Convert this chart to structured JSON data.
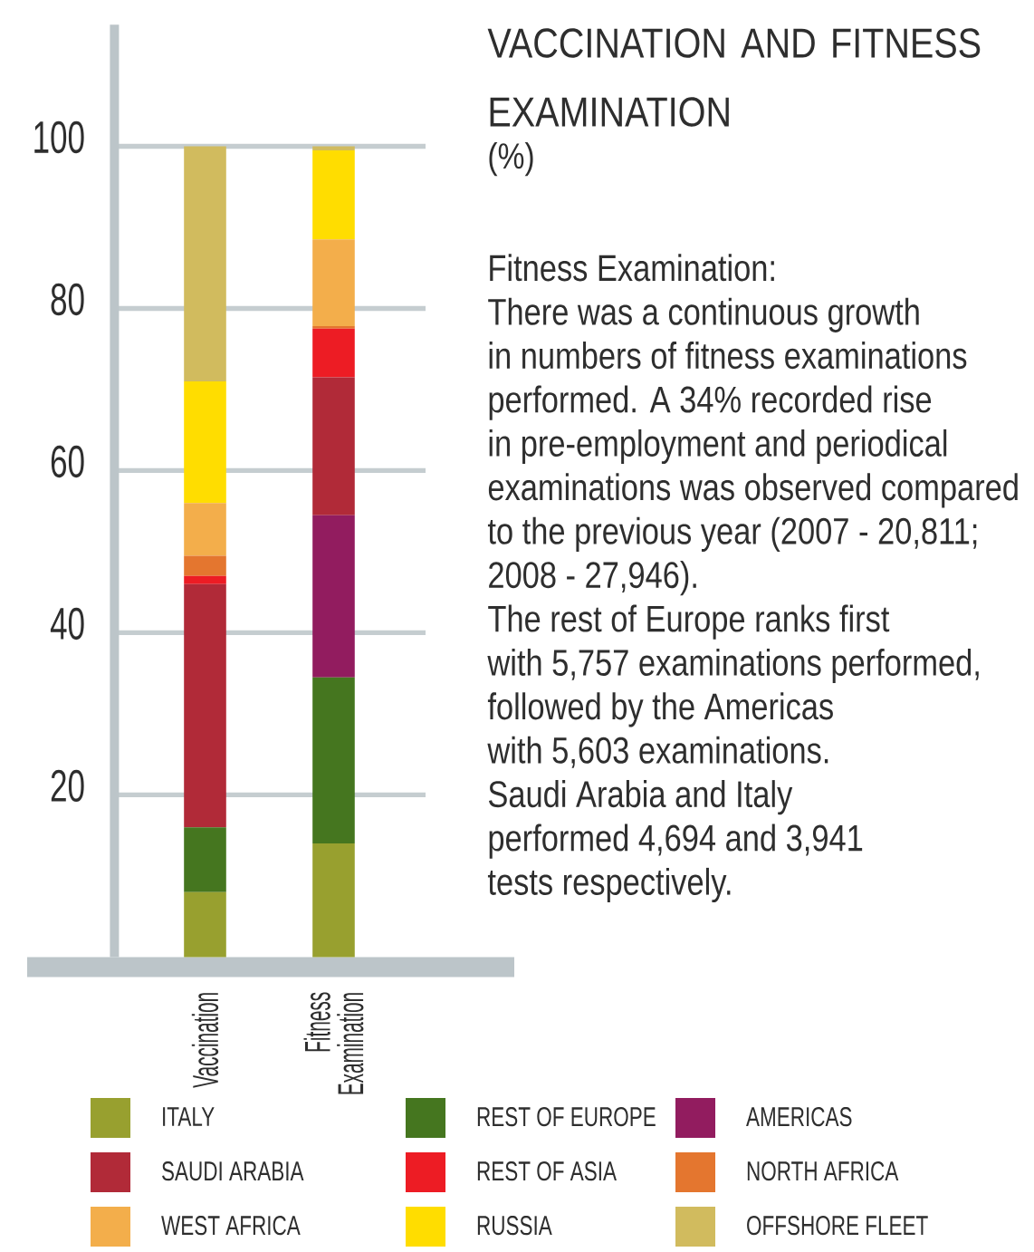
{
  "chart_data": {
    "type": "bar",
    "stacked": true,
    "title": "VACCINATION AND FITNESS EXAMINATION",
    "subtitle": "(%)",
    "categories": [
      "Vaccination",
      "Fitness Examination"
    ],
    "series": [
      {
        "name": "ITALY",
        "color": "#98a02f",
        "values": [
          8,
          14
        ]
      },
      {
        "name": "REST OF EUROPE",
        "color": "#45761f",
        "values": [
          8,
          20.5
        ]
      },
      {
        "name": "AMERICAS",
        "color": "#921c5f",
        "values": [
          0,
          20
        ]
      },
      {
        "name": "SAUDI ARABIA",
        "color": "#b12a38",
        "values": [
          30,
          17
        ]
      },
      {
        "name": "REST OF ASIA",
        "color": "#ed1c24",
        "values": [
          1,
          6
        ]
      },
      {
        "name": "NORTH AFRICA",
        "color": "#e4762f",
        "values": [
          2.5,
          0.3
        ]
      },
      {
        "name": "WEST AFRICA",
        "color": "#f3ae4b",
        "values": [
          6.5,
          10.7
        ]
      },
      {
        "name": "RUSSIA",
        "color": "#ffdd00",
        "values": [
          15,
          11
        ]
      },
      {
        "name": "OFFSHORE FLEET",
        "color": "#d1bb5e",
        "values": [
          29,
          0.5
        ]
      }
    ],
    "ylim": [
      0,
      115
    ],
    "yticks": [
      20,
      40,
      60,
      80,
      100
    ],
    "grid": "y",
    "legend": "bottom",
    "annotations": [
      "Fitness Examination:",
      "There was a continuous growth",
      "in numbers of fitness examinations",
      "performed. A 34% recorded rise",
      "in pre-employment and periodical",
      "examinations was observed compared",
      "to the previous year (2007 - 20,811;",
      "2008 - 27,946).",
      "The rest of Europe ranks first",
      "with 5,757 examinations performed,",
      "followed by the Americas",
      "with 5,603 examinations.",
      "Saudi Arabia and Italy",
      "performed 4,694 and 3,941",
      "tests respectively."
    ]
  }
}
